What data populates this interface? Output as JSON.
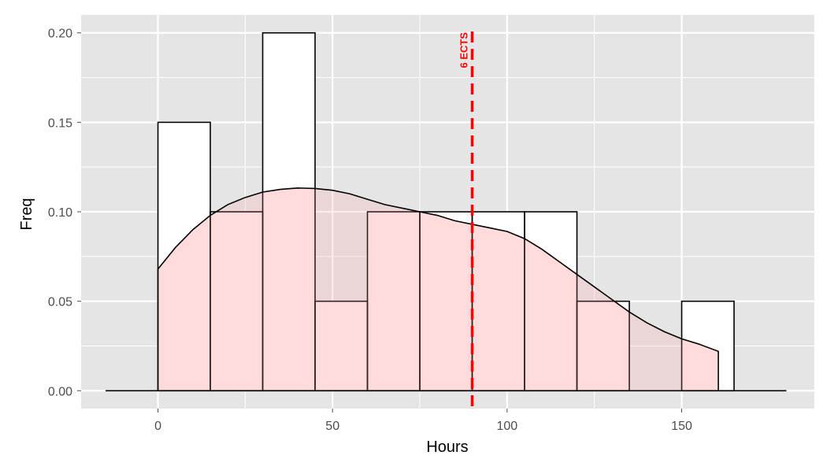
{
  "chart_data": {
    "type": "bar",
    "subtype": "histogram-with-density",
    "xlabel": "Hours",
    "ylabel": "Freq",
    "xlim": [
      -22,
      188
    ],
    "ylim": [
      -0.01,
      0.21
    ],
    "x_ticks": [
      0,
      50,
      100,
      150
    ],
    "x_tick_labels": [
      "0",
      "50",
      "100",
      "150"
    ],
    "y_ticks": [
      0.0,
      0.05,
      0.1,
      0.15,
      0.2
    ],
    "y_tick_labels": [
      "0.00",
      "0.05",
      "0.10",
      "0.15",
      "0.20"
    ],
    "grid": true,
    "bin_width": 15,
    "bins": [
      {
        "start": 0,
        "end": 15,
        "freq": 0.15
      },
      {
        "start": 15,
        "end": 30,
        "freq": 0.1
      },
      {
        "start": 30,
        "end": 45,
        "freq": 0.2
      },
      {
        "start": 45,
        "end": 60,
        "freq": 0.05
      },
      {
        "start": 60,
        "end": 75,
        "freq": 0.1
      },
      {
        "start": 75,
        "end": 90,
        "freq": 0.1
      },
      {
        "start": 90,
        "end": 105,
        "freq": 0.1
      },
      {
        "start": 105,
        "end": 120,
        "freq": 0.1
      },
      {
        "start": 120,
        "end": 135,
        "freq": 0.05
      },
      {
        "start": 135,
        "end": 150,
        "freq": 0.0
      },
      {
        "start": 150,
        "end": 165,
        "freq": 0.05
      }
    ],
    "density": {
      "x": [
        0,
        5,
        10,
        15,
        20,
        25,
        30,
        35,
        40,
        45,
        50,
        55,
        60,
        65,
        70,
        75,
        80,
        85,
        90,
        95,
        100,
        105,
        110,
        115,
        120,
        125,
        130,
        135,
        140,
        145,
        150,
        155,
        160.5
      ],
      "y": [
        0.068,
        0.08,
        0.09,
        0.098,
        0.104,
        0.108,
        0.111,
        0.1125,
        0.1133,
        0.113,
        0.112,
        0.11,
        0.107,
        0.104,
        0.102,
        0.1,
        0.098,
        0.095,
        0.093,
        0.091,
        0.089,
        0.085,
        0.079,
        0.072,
        0.065,
        0.058,
        0.051,
        0.044,
        0.038,
        0.033,
        0.029,
        0.026,
        0.022
      ]
    },
    "baseline_range": [
      -15,
      180
    ],
    "reference_line": {
      "x": 90,
      "label": "6 ECTS",
      "color": "#ff0000",
      "style": "dashed"
    },
    "colors": {
      "panel": "#e5e5e5",
      "grid": "#ffffff",
      "bar_fill": "#ffffff",
      "bar_stroke": "#000000",
      "density_fill": "#ff9999",
      "density_stroke": "#000000"
    }
  }
}
